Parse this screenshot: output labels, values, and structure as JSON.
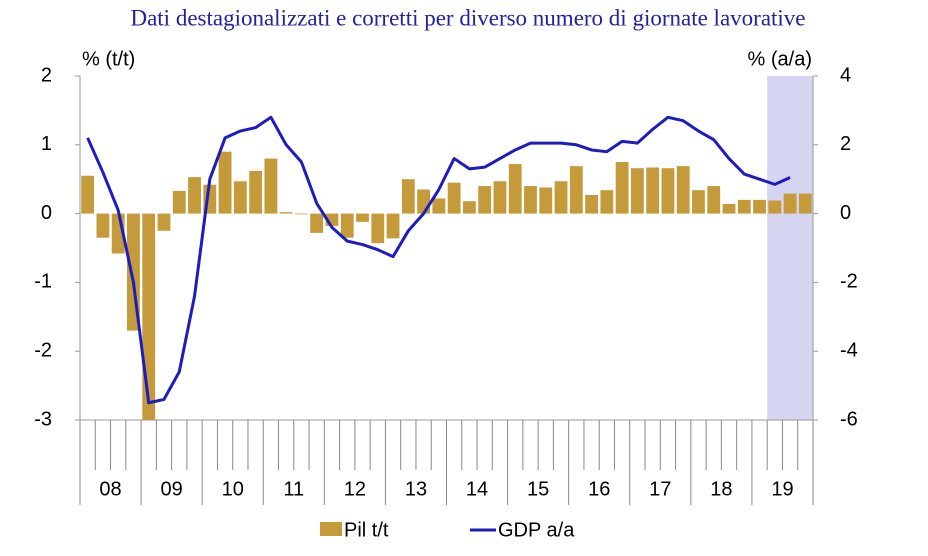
{
  "chart_data": {
    "type": "bar",
    "subtitle": "Dati destagionalizzati e corretti per diverso numero di giornate lavorative",
    "y_label": "% (t/t)",
    "y2_label": "% (a/a)",
    "categories": [
      null,
      "08",
      null,
      null,
      null,
      "09",
      null,
      null,
      null,
      "10",
      null,
      null,
      null,
      "11",
      null,
      null,
      null,
      "12",
      null,
      null,
      null,
      "13",
      null,
      null,
      null,
      "14",
      null,
      null,
      null,
      "15",
      null,
      null,
      null,
      "16",
      null,
      null,
      null,
      "17",
      null,
      null,
      null,
      "18",
      null,
      null,
      null,
      "19",
      null,
      null
    ],
    "series": [
      {
        "name": "Pil t/t",
        "color": "#c49a3a",
        "type": "bar",
        "values": [
          0.55,
          -0.35,
          -0.58,
          -1.7,
          -3.0,
          -0.25,
          0.33,
          0.53,
          0.42,
          0.9,
          0.47,
          0.62,
          0.8,
          0.02,
          -0.01,
          -0.28,
          -0.18,
          -0.35,
          -0.12,
          -0.43,
          -0.36,
          0.5,
          0.35,
          0.22,
          0.45,
          0.18,
          0.4,
          0.47,
          0.72,
          0.4,
          0.38,
          0.47,
          0.69,
          0.27,
          0.34,
          0.75,
          0.66,
          0.67,
          0.66,
          0.69,
          0.34,
          0.4,
          0.14,
          0.2,
          0.2,
          0.19,
          0.29,
          0.29
        ]
      },
      {
        "name": "GDP a/a",
        "color": "#1c1cc0",
        "type": "line",
        "axis": "y2",
        "values": [
          2.2,
          1.2,
          0.1,
          -2.0,
          -5.5,
          -5.4,
          -4.6,
          -2.4,
          1.0,
          2.2,
          2.4,
          2.5,
          2.8,
          2.0,
          1.5,
          0.3,
          -0.4,
          -0.8,
          -0.9,
          -1.05,
          -1.25,
          -0.5,
          0.0,
          0.7,
          1.6,
          1.3,
          1.35,
          1.6,
          1.85,
          2.05,
          2.05,
          2.05,
          2.0,
          1.85,
          1.8,
          2.1,
          2.05,
          2.45,
          2.8,
          2.7,
          2.4,
          2.15,
          1.6,
          1.15,
          1.0,
          0.85,
          1.05,
          null
        ]
      }
    ],
    "ylim": [
      -3,
      2
    ],
    "yticks": [
      -3,
      -2,
      -1,
      0,
      1,
      2
    ],
    "y2lim": [
      -6,
      4
    ],
    "y2ticks": [
      -6,
      -4,
      -2,
      0,
      2,
      4
    ],
    "grid": false,
    "legend": "bottom"
  }
}
